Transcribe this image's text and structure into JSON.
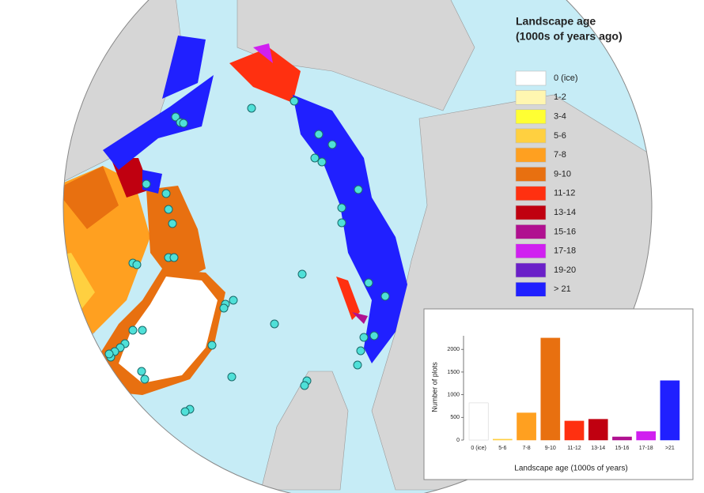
{
  "legend": {
    "title_lines": [
      "Landscape age",
      "(1000s of years ago)"
    ],
    "items": [
      {
        "label": "0 (ice)",
        "color": "#ffffff"
      },
      {
        "label": "1-2",
        "color": "#fff6b0"
      },
      {
        "label": "3-4",
        "color": "#ffff33"
      },
      {
        "label": "5-6",
        "color": "#ffd040"
      },
      {
        "label": "7-8",
        "color": "#ffa020"
      },
      {
        "label": "9-10",
        "color": "#e87010"
      },
      {
        "label": "11-12",
        "color": "#ff3010"
      },
      {
        "label": "13-14",
        "color": "#c00010"
      },
      {
        "label": "15-16",
        "color": "#b01090"
      },
      {
        "label": "17-18",
        "color": "#d020f0"
      },
      {
        "label": "19-20",
        "color": "#6a20c8"
      },
      {
        "label": "> 21",
        "color": "#2020ff"
      }
    ]
  },
  "chart_data": {
    "type": "bar",
    "xlabel": "Landscape age (1000s of years)",
    "ylabel": "Number of plots",
    "categories": [
      "0 (ice)",
      "5-6",
      "7-8",
      "9-10",
      "11-12",
      "13-14",
      "15-16",
      "17-18",
      ">21"
    ],
    "values": [
      820,
      20,
      600,
      2250,
      420,
      460,
      70,
      190,
      1310
    ],
    "colors": [
      "#ffffff",
      "#ffd040",
      "#ffa020",
      "#e87010",
      "#ff3010",
      "#c00010",
      "#b01090",
      "#d020f0",
      "#2020ff"
    ],
    "ylim": [
      0,
      2300
    ],
    "yticks": [
      0,
      500,
      1000,
      1500,
      2000
    ]
  }
}
